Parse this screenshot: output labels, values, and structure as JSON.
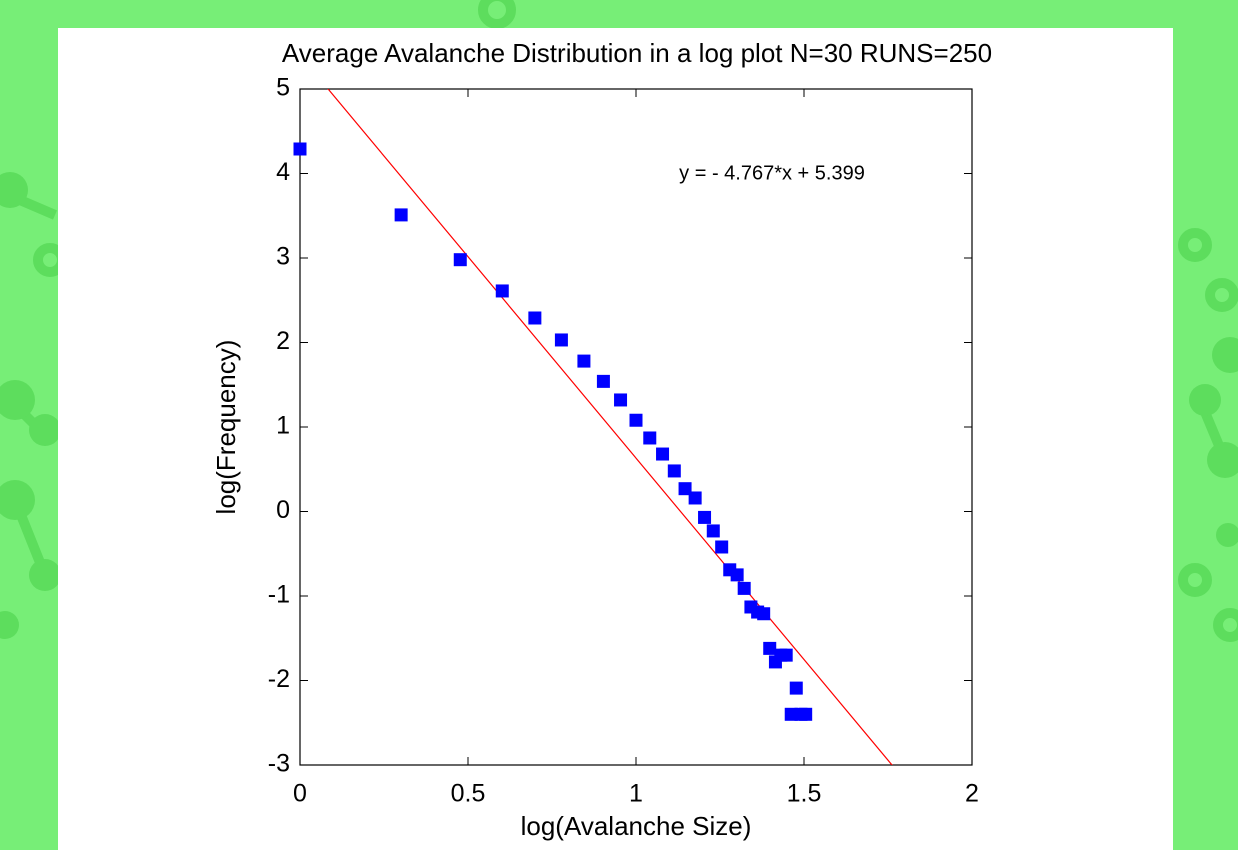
{
  "chart_data": {
    "type": "scatter",
    "title": "Average Avalanche Distribution in a log plot N=30 RUNS=250",
    "x_label": "log(Avalanche Size)",
    "y_label": "log(Frequency)",
    "annotation": "y = - 4.767*x + 5.399",
    "series": [
      {
        "color": "#0000ff",
        "x": [
          0,
          0.301,
          0.477,
          0.602,
          0.699,
          0.778,
          0.845,
          0.903,
          0.954,
          1.0,
          1.041,
          1.079,
          1.114,
          1.146,
          1.176,
          1.204,
          1.23,
          1.255,
          1.279,
          1.301,
          1.322,
          1.342,
          1.362,
          1.38,
          1.398,
          1.415,
          1.431,
          1.447,
          1.462,
          1.477,
          1.491,
          1.505
        ],
        "values": [
          4.29,
          3.51,
          2.98,
          2.61,
          2.29,
          2.03,
          1.78,
          1.54,
          1.32,
          1.08,
          0.87,
          0.68,
          0.48,
          0.27,
          0.16,
          -0.07,
          -0.23,
          -0.42,
          -0.69,
          -0.75,
          -0.91,
          -1.13,
          -1.19,
          -1.21,
          -1.62,
          -1.78,
          -1.7,
          -1.7,
          -2.4,
          -2.09,
          -2.4,
          -2.4
        ]
      }
    ],
    "fit": {
      "slope": -4.767,
      "intercept": 5.399,
      "color": "#ff0000"
    },
    "xlim": [
      0,
      2
    ],
    "xticks": [
      0,
      0.5,
      1,
      1.5,
      2
    ],
    "ylim": [
      -3,
      5
    ],
    "yticks": [
      -3,
      -2,
      -1,
      0,
      1,
      2,
      3,
      4,
      5
    ],
    "grid": false
  }
}
